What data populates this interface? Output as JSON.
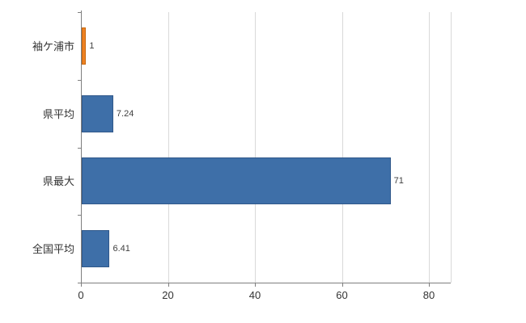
{
  "chart_data": {
    "type": "bar",
    "orientation": "horizontal",
    "title": "",
    "xlabel": "",
    "ylabel": "",
    "categories": [
      "袖ケ浦市",
      "県平均",
      "県最大",
      "全国平均"
    ],
    "values": [
      1,
      7.24,
      71,
      6.41
    ],
    "value_labels": [
      "1",
      "7.24",
      "71",
      "6.41"
    ],
    "bar_colors": [
      "#ee8122",
      "#3e6fa8",
      "#3e6fa8",
      "#3e6fa8"
    ],
    "bar_border_colors": [
      "#c96a10",
      "#30588a",
      "#30588a",
      "#30588a"
    ],
    "xlim": [
      0,
      80
    ],
    "xticks": [
      0,
      20,
      40,
      60,
      80
    ],
    "grid": true,
    "legend_position": "none",
    "colors": {
      "gridline": "#d9d9d9",
      "axis": "#7f7f7f",
      "text": "#333333",
      "value_text": "#404040",
      "background": "#ffffff"
    }
  }
}
